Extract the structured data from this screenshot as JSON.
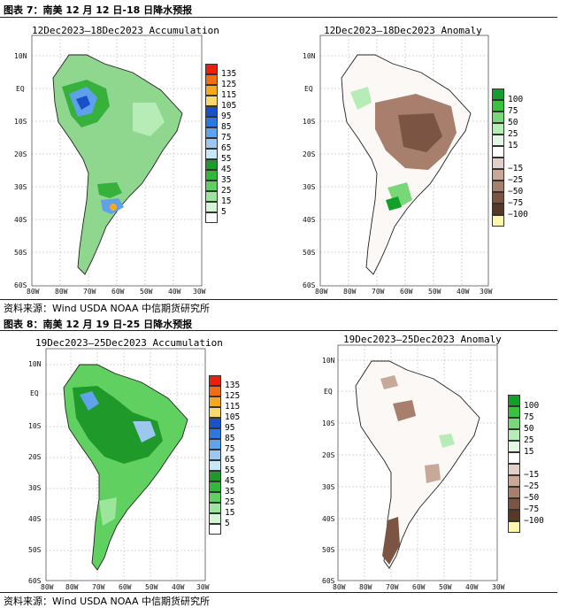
{
  "figures": [
    {
      "caption": "图表 7：南美 12 月 12 日-18 日降水预报",
      "source": "资料来源：Wind USDA NOAA 中信期货研究所",
      "left_title": "12Dec2023—18Dec2023 Accumulation",
      "right_title": "12Dec2023—18Dec2023 Anomaly"
    },
    {
      "caption": "图表 8：南美 12 月 19 日-25 日降水预报",
      "source": "资料来源：Wind USDA NOAA 中信期货研究所",
      "left_title": "19Dec2023—25Dec2023 Accumulation",
      "right_title": "19Dec2023—25Dec2023 Anomaly"
    }
  ],
  "axes": {
    "lat": [
      "10N",
      "EQ",
      "10S",
      "20S",
      "30S",
      "40S",
      "50S",
      "60S"
    ],
    "lon": [
      "80W",
      "80W",
      "70W",
      "60W",
      "50W",
      "40W",
      "30W"
    ]
  },
  "legend_accum": {
    "labels": [
      "135",
      "125",
      "115",
      "105",
      "95",
      "85",
      "75",
      "65",
      "55",
      "45",
      "35",
      "25",
      "15",
      "5"
    ],
    "colors": [
      "#e8200c",
      "#f26c10",
      "#f7a91c",
      "#f9d96a",
      "#1a50c8",
      "#2a78e0",
      "#5fa3ea",
      "#9cc8f0",
      "#c8e8f8",
      "#1f9a2a",
      "#33b83c",
      "#60d060",
      "#9ce69c",
      "#d6f5d6",
      "#ffffff"
    ]
  },
  "legend_anom": {
    "labels": [
      "100",
      "75",
      "50",
      "25",
      "15",
      "−15",
      "−25",
      "−50",
      "−75",
      "−100"
    ],
    "colors": [
      "#13a02a",
      "#3cc040",
      "#78d878",
      "#b6ecb6",
      "#e2f8e2",
      "#ffffff",
      "#e2d0c8",
      "#c8a898",
      "#a87e6c",
      "#7c5444",
      "#583828",
      "#fff6b0"
    ]
  }
}
